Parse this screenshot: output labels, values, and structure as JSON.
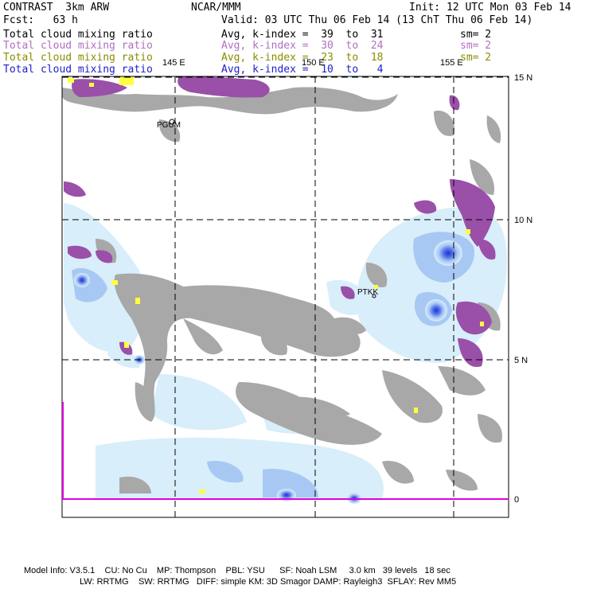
{
  "header": {
    "model": "CONTRAST  3km ARW",
    "center": "NCAR/MMM",
    "init": "Init: 12 UTC Mon 03 Feb 14",
    "forecast": "Fcst:   63 h",
    "valid": "Valid: 03 UTC Thu 06 Feb 14 (13 ChT Thu 06 Feb 14)"
  },
  "fields": [
    {
      "name": "Total cloud mixing ratio",
      "avg": "Avg, k-index =  39  to  31",
      "sm": "sm= 2",
      "color": "#000000"
    },
    {
      "name": "Total cloud mixing ratio",
      "avg": "Avg, k-index =  30  to  24",
      "sm": "sm= 2",
      "color": "#b070c0"
    },
    {
      "name": "Total cloud mixing ratio",
      "avg": "Avg, k-index =  23  to  18",
      "sm": "sm= 2",
      "color": "#8c8c00"
    },
    {
      "name": "Total cloud mixing ratio",
      "avg": "Avg, k-index =  10  to   4",
      "sm": "",
      "color": "#2020d0"
    }
  ],
  "map": {
    "lon_labels": [
      "145 E",
      "150 E",
      "155 E"
    ],
    "lat_labels": [
      "15 N",
      "10 N",
      "5 N",
      "0"
    ],
    "stations": [
      "PGUM",
      "PTKK"
    ]
  },
  "footer": {
    "line1": "Model Info: V3.5.1    CU: No Cu    MP: Thompson    PBL: YSU      SF: Noah LSM     3.0 km   39 levels   18 sec",
    "line2": "LW: RRTMG    SW: RRTMG   DIFF: simple KM: 3D Smagor DAMP: Rayleigh3  SFLAY: Rev MM5"
  },
  "colors": {
    "gray_cloud": "#a8a8a8",
    "purple_cloud": "#9a50a8",
    "yellow_cloud": "#ffff40",
    "light_blue": "#d8eefa",
    "mid_blue": "#a8c8f4",
    "dark_blue": "#2030d8",
    "boundary": "#e000e0"
  }
}
